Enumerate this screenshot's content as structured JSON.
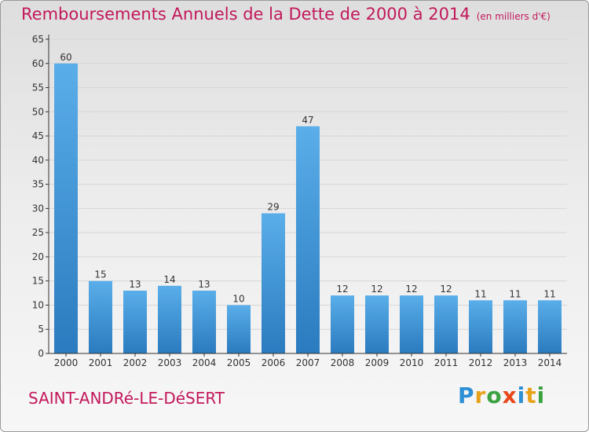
{
  "title": {
    "main": "Remboursements Annuels de la Dette de 2000 à 2014",
    "unit": "(en milliers d'€)"
  },
  "town": "SAINT-ANDRé-LE-DéSERT",
  "logo": {
    "text": "Proxiti",
    "letter_colors": [
      "#2d8fd5",
      "#e8a21a",
      "#3aa241",
      "#e8471b",
      "#2d8fd5",
      "#e8a21a",
      "#3aa241"
    ]
  },
  "colors": {
    "title": "#c2185b",
    "bar_light": "#5aaee9",
    "bar_dark": "#2a7bbf",
    "axis": "#333333",
    "grid": "#d6d6d6"
  },
  "chart_data": {
    "type": "bar",
    "title": "Remboursements Annuels de la Dette de 2000 à 2014",
    "subtitle": "(en milliers d'€)",
    "xlabel": "",
    "ylabel": "",
    "categories": [
      "2000",
      "2001",
      "2002",
      "2003",
      "2004",
      "2005",
      "2006",
      "2007",
      "2008",
      "2009",
      "2010",
      "2011",
      "2012",
      "2013",
      "2014"
    ],
    "values": [
      60,
      15,
      13,
      14,
      13,
      10,
      29,
      47,
      12,
      12,
      12,
      12,
      11,
      11,
      11
    ],
    "ylim": [
      0,
      65
    ],
    "yticks": [
      0,
      5,
      10,
      15,
      20,
      25,
      30,
      35,
      40,
      45,
      50,
      55,
      60,
      65
    ],
    "grid": true,
    "legend": "none"
  }
}
